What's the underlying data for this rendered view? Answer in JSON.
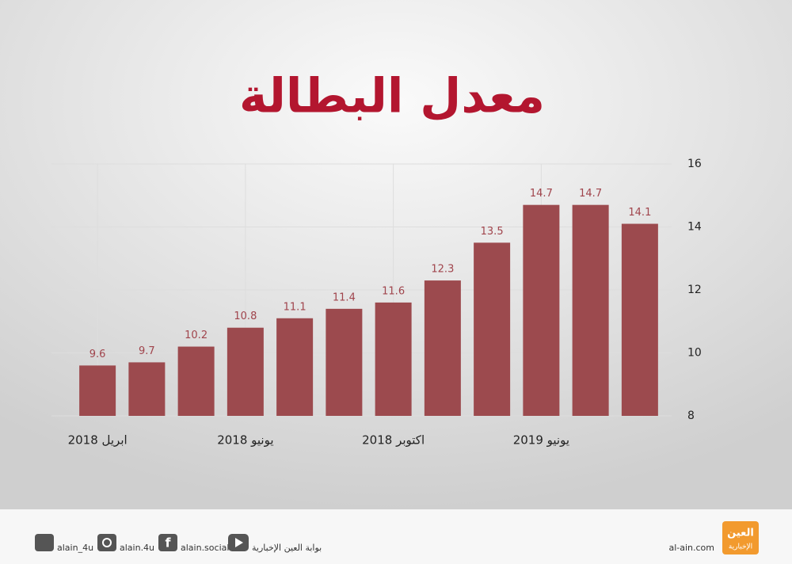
{
  "chart_data": {
    "type": "bar",
    "title": "معدل البطالة",
    "categories": [
      "ابريل 2018",
      null,
      null,
      "يونيو 2018",
      null,
      null,
      "اكتوبر 2018",
      null,
      null,
      "يونيو 2019",
      null,
      null
    ],
    "values": [
      9.6,
      9.7,
      10.2,
      10.8,
      11.1,
      11.4,
      11.6,
      12.3,
      13.5,
      14.7,
      14.7,
      14.1
    ],
    "color": "#9c4a4e",
    "label_color": "#a0444c",
    "ylim": [
      8,
      16
    ],
    "yticks": [
      8,
      10,
      12,
      14,
      16
    ],
    "grid": true
  },
  "footer": {
    "twitter": "alain_4u",
    "instagram": "alain.4u",
    "facebook": "alain.social",
    "youtube": "بوابة العين الإخبارية",
    "site": "al-ain.com",
    "logo_top": "العين",
    "logo_bottom": "الإخبارية"
  }
}
